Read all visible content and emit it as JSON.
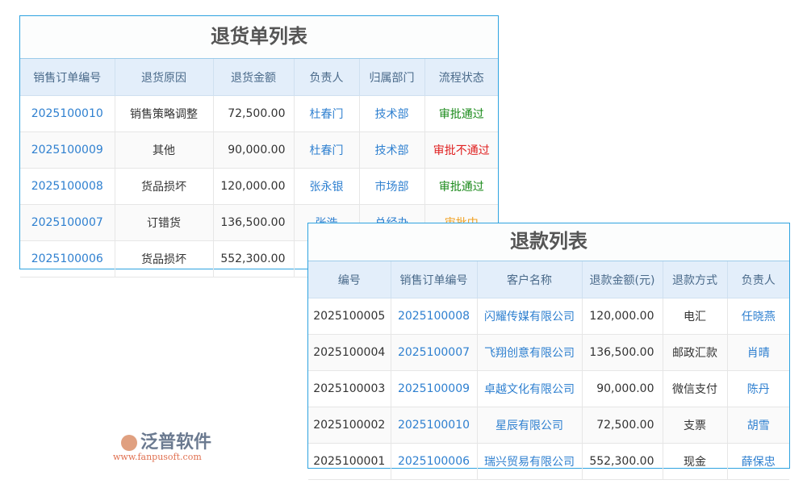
{
  "returns": {
    "title": "退货单列表",
    "headers": [
      "销售订单编号",
      "退货原因",
      "退货金额",
      "负责人",
      "归属部门",
      "流程状态"
    ],
    "rows": [
      [
        "2025100010",
        "销售策略调整",
        "72,500.00",
        "杜春门",
        "技术部",
        "审批通过"
      ],
      [
        "2025100009",
        "其他",
        "90,000.00",
        "杜春门",
        "技术部",
        "审批不通过"
      ],
      [
        "2025100008",
        "货品损坏",
        "120,000.00",
        "张永银",
        "市场部",
        "审批通过"
      ],
      [
        "2025100007",
        "订错货",
        "136,500.00",
        "张浩",
        "总经办",
        "审批中"
      ],
      [
        "2025100006",
        "货品损坏",
        "552,300.00",
        "",
        "",
        ""
      ]
    ]
  },
  "refunds": {
    "title": "退款列表",
    "headers": [
      "编号",
      "销售订单编号",
      "客户名称",
      "退款金额(元)",
      "退款方式",
      "负责人"
    ],
    "rows": [
      [
        "2025100005",
        "2025100008",
        "闪耀传媒有限公司",
        "120,000.00",
        "电汇",
        "任晓燕"
      ],
      [
        "2025100004",
        "2025100007",
        "飞翔创意有限公司",
        "136,500.00",
        "邮政汇款",
        "肖晴"
      ],
      [
        "2025100003",
        "2025100009",
        "卓越文化有限公司",
        "90,000.00",
        "微信支付",
        "陈丹"
      ],
      [
        "2025100002",
        "2025100010",
        "星辰有限公司",
        "72,500.00",
        "支票",
        "胡雪"
      ],
      [
        "2025100001",
        "2025100006",
        "瑞兴贸易有限公司",
        "552,300.00",
        "现金",
        "薛保忠"
      ]
    ]
  },
  "watermark": {
    "text": "泛普软件",
    "url": "www.fanpusoft.com"
  },
  "status_colors": {
    "审批通过": "#1a8a1a",
    "审批不通过": "#e02020",
    "审批中": "#f0a020"
  }
}
